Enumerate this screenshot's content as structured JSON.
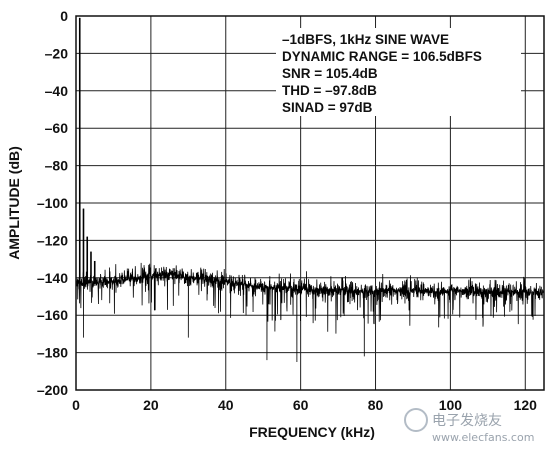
{
  "chart_data": {
    "type": "line",
    "title": "",
    "xlabel": "FREQUENCY (kHz)",
    "ylabel": "AMPLITUDE (dB)",
    "xlim": [
      0,
      125
    ],
    "ylim": [
      -200,
      0
    ],
    "x_ticks": [
      "0",
      "20",
      "40",
      "60",
      "80",
      "100",
      "120"
    ],
    "y_ticks": [
      "0",
      "–20",
      "–40",
      "–60",
      "–80",
      "–100",
      "–120",
      "–140",
      "–160",
      "–180",
      "–200"
    ],
    "grid": true,
    "annotations": [
      "–1dBFS, 1kHz SINE WAVE",
      "DYNAMIC RANGE = 106.5dBFS",
      "SNR = 105.4dB",
      "THD = –97.8dB",
      "SINAD = 97dB"
    ],
    "series": [
      {
        "color": "#000000",
        "fundamental": {
          "x": 1,
          "y": -1
        },
        "harmonics": [
          {
            "x": 2,
            "y": -103
          },
          {
            "x": 3,
            "y": -118
          },
          {
            "x": 4,
            "y": -126
          },
          {
            "x": 5,
            "y": -131
          }
        ],
        "noise_floor": [
          {
            "x": 0,
            "y": -143
          },
          {
            "x": 10,
            "y": -142
          },
          {
            "x": 20,
            "y": -139
          },
          {
            "x": 25,
            "y": -138
          },
          {
            "x": 30,
            "y": -140
          },
          {
            "x": 40,
            "y": -142
          },
          {
            "x": 50,
            "y": -145
          },
          {
            "x": 60,
            "y": -146
          },
          {
            "x": 80,
            "y": -147
          },
          {
            "x": 100,
            "y": -147
          },
          {
            "x": 125,
            "y": -148
          }
        ],
        "noise_spread_db": 8,
        "deep_spurs": [
          {
            "x": 51,
            "y": -184
          },
          {
            "x": 59,
            "y": -185
          },
          {
            "x": 77,
            "y": -182
          },
          {
            "x": 30,
            "y": -172
          },
          {
            "x": 2,
            "y": -172
          }
        ]
      }
    ]
  },
  "watermark": {
    "brand": "电子发烧友",
    "url": "www.elecfans.com"
  }
}
